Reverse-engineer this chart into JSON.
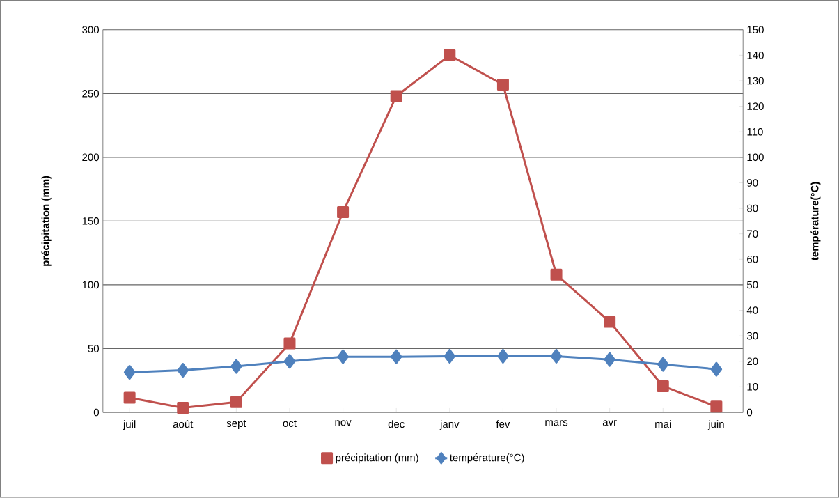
{
  "chart_data": {
    "type": "line",
    "categories": [
      "juil",
      "août",
      "sept",
      "oct",
      "nov",
      "dec",
      "janv",
      "fev",
      "mars",
      "avr",
      "mai",
      "juin"
    ],
    "series": [
      {
        "name": "précipitation (mm)",
        "color": "#c0504d",
        "marker": "square",
        "values": [
          11.5,
          3.5,
          8,
          54,
          157,
          248,
          280,
          257,
          108,
          71,
          20.5,
          4.5
        ]
      },
      {
        "name": "température(°C)",
        "color": "#4f81bd",
        "marker": "diamond",
        "axis": "y2",
        "values": [
          15.7,
          16.5,
          18,
          20,
          21.8,
          21.8,
          22,
          22,
          22,
          20.7,
          18.8,
          16.9
        ]
      }
    ],
    "ylabel": "précipitation (mm)",
    "y2label": "température(°C)",
    "ylim": [
      0,
      300
    ],
    "yticks": [
      0,
      50,
      100,
      150,
      200,
      250,
      300
    ],
    "y2lim": [
      0,
      150
    ],
    "y2ticks": [
      0,
      10,
      20,
      30,
      40,
      50,
      60,
      70,
      80,
      90,
      100,
      110,
      120,
      130,
      140,
      150
    ],
    "grid": "y",
    "legend": "bottom",
    "line_style": "solid"
  }
}
